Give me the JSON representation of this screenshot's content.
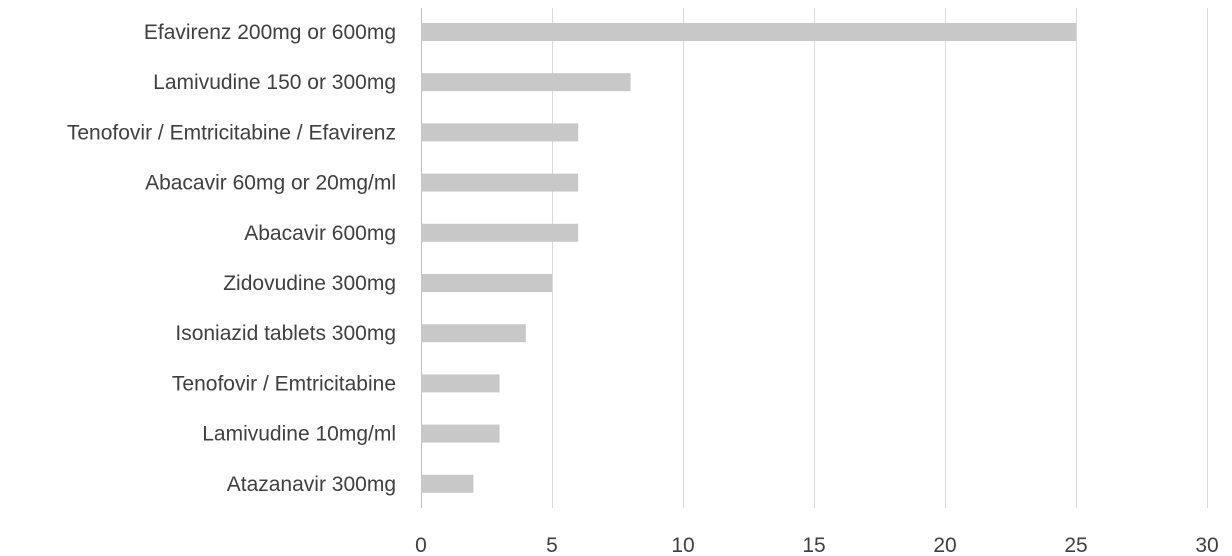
{
  "chart_data": {
    "type": "bar",
    "orientation": "horizontal",
    "categories": [
      "Efavirenz 200mg or 600mg",
      "Lamivudine 150 or 300mg",
      "Tenofovir / Emtricitabine / Efavirenz",
      "Abacavir 60mg or 20mg/ml",
      "Abacavir 600mg",
      "Zidovudine 300mg",
      "Isoniazid tablets 300mg",
      "Tenofovir / Emtricitabine",
      "Lamivudine 10mg/ml",
      "Atazanavir 300mg"
    ],
    "values": [
      25,
      8,
      6,
      6,
      6,
      5,
      4,
      3,
      3,
      2
    ],
    "xlim": [
      0,
      30
    ],
    "x_ticks": [
      "0",
      "5",
      "10",
      "15",
      "20",
      "25",
      "30"
    ],
    "x_tick_values": [
      0,
      5,
      10,
      15,
      20,
      25,
      30
    ],
    "title": "",
    "xlabel": "",
    "ylabel": "",
    "grid": "vertical",
    "legend": "none",
    "bar_color": "#c8c8c8",
    "gridline_color": "#d9d9d9",
    "text_color": "#404040"
  }
}
